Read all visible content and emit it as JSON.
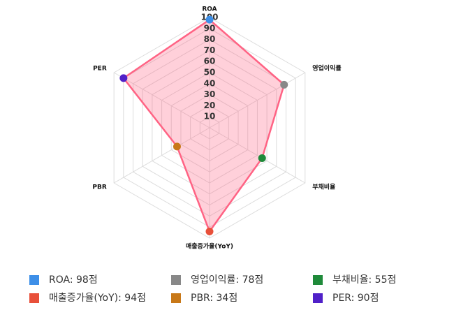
{
  "chart_data": {
    "type": "radar",
    "categories": [
      "ROA",
      "영업이익률",
      "부채비율",
      "매출증가율(YoY)",
      "PBR",
      "PER"
    ],
    "values": [
      98,
      78,
      55,
      94,
      34,
      90
    ],
    "value_labels": [
      "ROA: 98점",
      "영업이익률: 78점",
      "부채비율: 55점",
      "매출증가율(YoY): 94점",
      "PBR: 34점",
      "PER: 90점"
    ],
    "colors": [
      "#3d8fe8",
      "#888888",
      "#1f8a3a",
      "#e8503a",
      "#c87818",
      "#5020c8"
    ],
    "line_color": "#ff6384",
    "fill_color": "rgba(255,99,132,0.3)",
    "rlim": [
      0,
      100
    ],
    "rticks": [
      10,
      20,
      30,
      40,
      50,
      60,
      70,
      80,
      90,
      100
    ],
    "grid": true
  }
}
